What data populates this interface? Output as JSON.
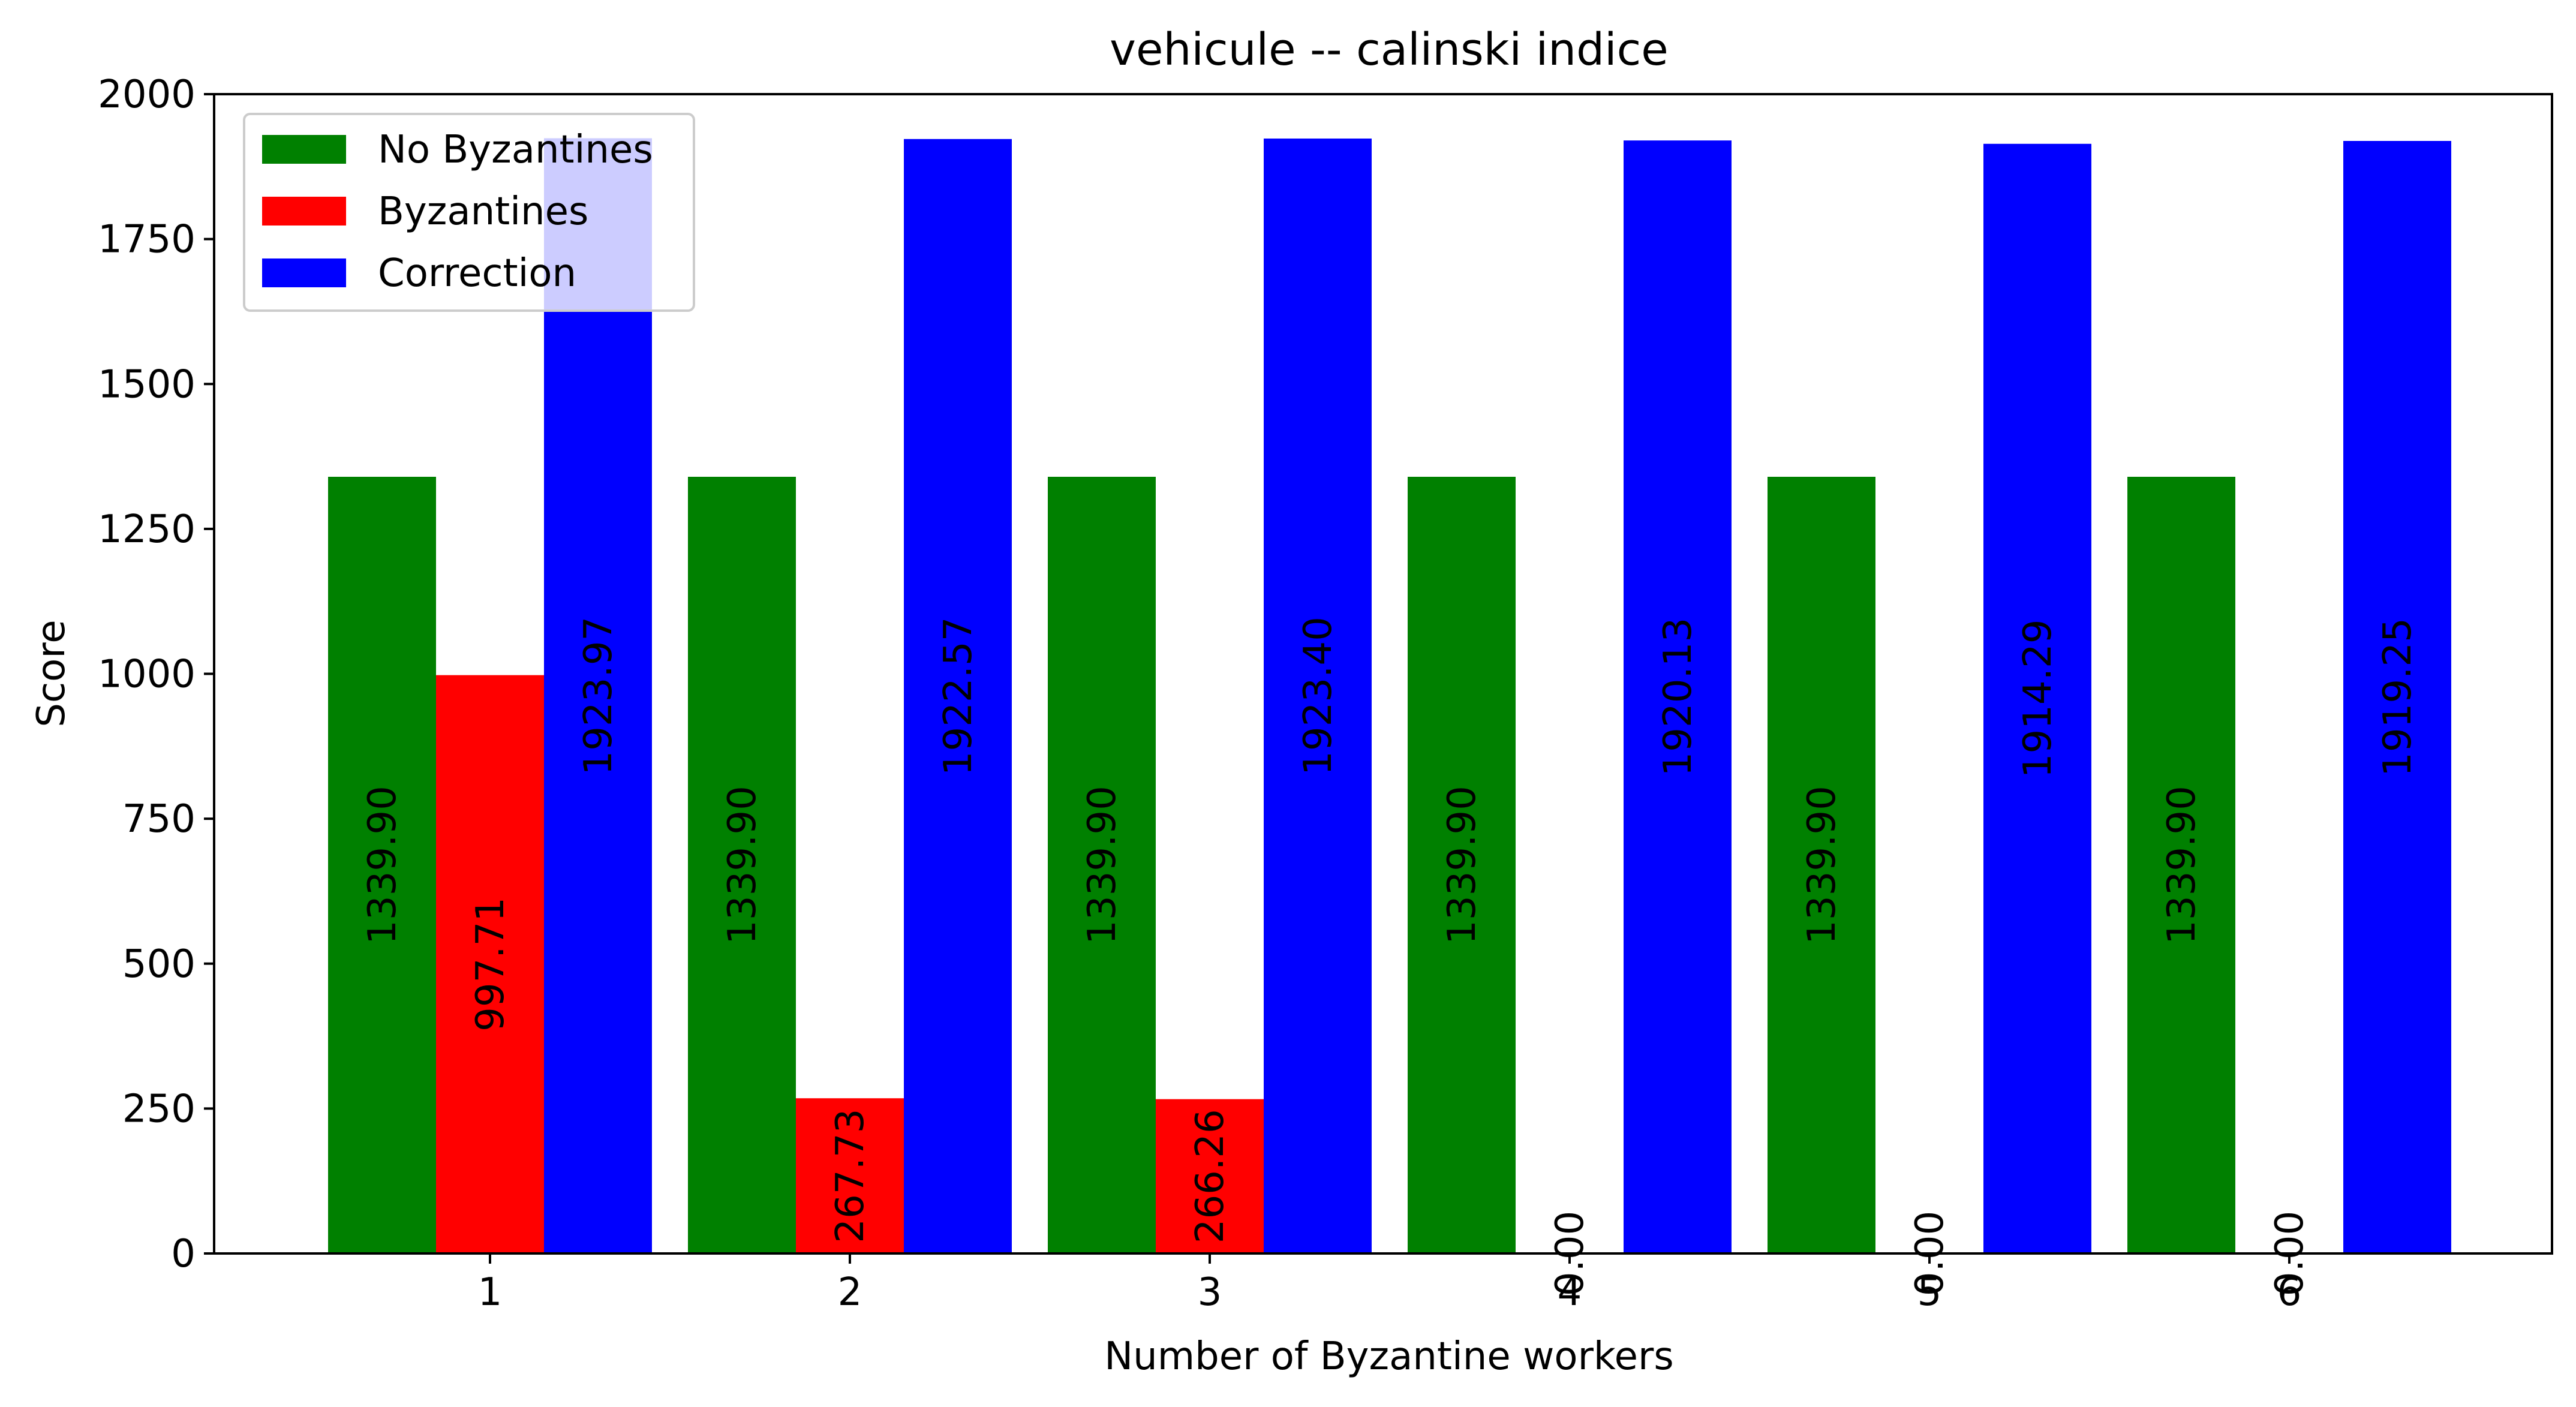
{
  "chart_data": {
    "type": "bar",
    "title": "vehicule -- calinski indice",
    "xlabel": "Number of Byzantine workers",
    "ylabel": "Score",
    "categories": [
      "1",
      "2",
      "3",
      "4",
      "5",
      "6"
    ],
    "ylim": [
      0,
      2000
    ],
    "yticks": [
      0,
      250,
      500,
      750,
      1000,
      1250,
      1500,
      1750,
      2000
    ],
    "grid": false,
    "legend_position": "top-left",
    "series": [
      {
        "name": "No Byzantines",
        "color": "#008000",
        "values": [
          1339.9,
          1339.9,
          1339.9,
          1339.9,
          1339.9,
          1339.9
        ],
        "labels": [
          "1339.90",
          "1339.90",
          "1339.90",
          "1339.90",
          "1339.90",
          "1339.90"
        ]
      },
      {
        "name": "Byzantines",
        "color": "#ff0000",
        "values": [
          997.71,
          267.73,
          266.26,
          0.0,
          0.0,
          0.0
        ],
        "labels": [
          "997.71",
          "267.73",
          "266.26",
          "0.00",
          "0.00",
          "0.00"
        ]
      },
      {
        "name": "Correction",
        "color": "#0000ff",
        "values": [
          1923.97,
          1922.57,
          1923.4,
          1920.13,
          1914.29,
          1919.25
        ],
        "labels": [
          "1923.97",
          "1922.57",
          "1923.40",
          "1920.13",
          "1914.29",
          "1919.25"
        ]
      }
    ]
  }
}
